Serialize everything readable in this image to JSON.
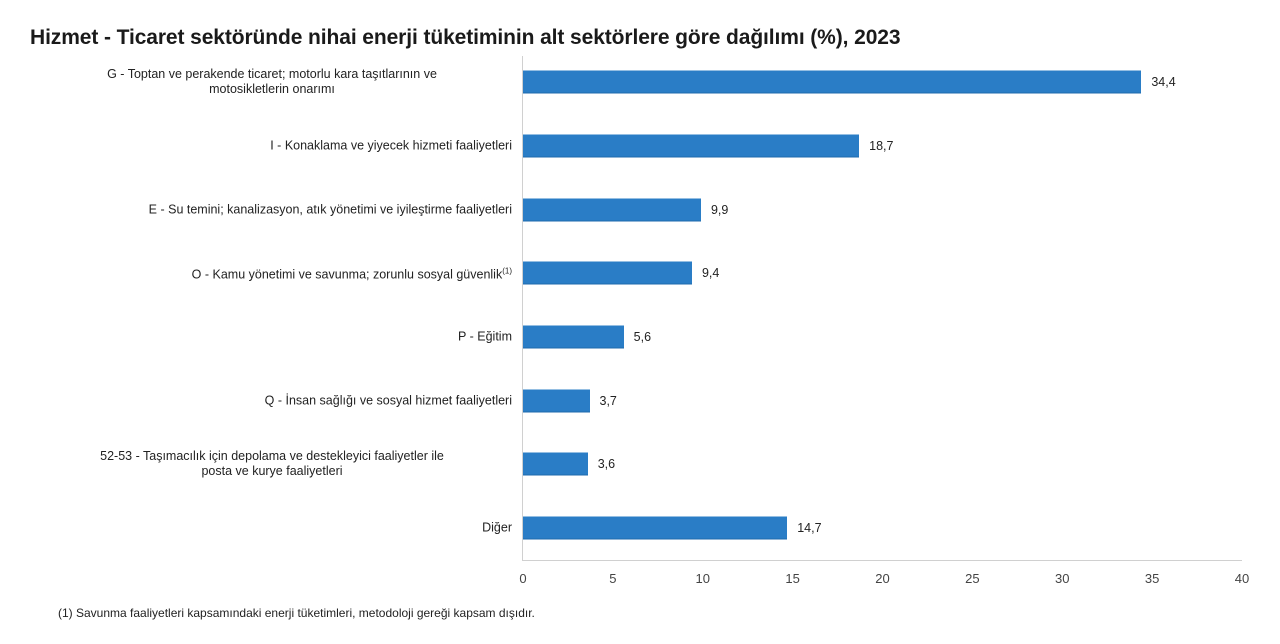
{
  "chart_data": {
    "type": "bar",
    "orientation": "horizontal",
    "title": "Hizmet - Ticaret sektöründe nihai enerji tüketiminin alt sektörlere göre dağılımı (%), 2023",
    "categories": [
      "G - Toptan ve perakende ticaret; motorlu kara taşıtlarının ve motosikletlerin onarımı",
      "I - Konaklama ve yiyecek hizmeti faaliyetleri",
      "E - Su temini; kanalizasyon, atık yönetimi ve iyileştirme faaliyetleri",
      "O - Kamu yönetimi ve savunma; zorunlu sosyal güvenlik(1)",
      "P - Eğitim",
      "Q - İnsan sağlığı ve sosyal hizmet faaliyetleri",
      "52-53 - Taşımacılık için depolama ve destekleyici faaliyetler ile posta ve kurye faaliyetleri",
      "Diğer"
    ],
    "values": [
      34.4,
      18.7,
      9.9,
      9.4,
      5.6,
      3.7,
      3.6,
      14.7
    ],
    "value_labels": [
      "34,4",
      "18,7",
      "9,9",
      "9,4",
      "5,6",
      "3,7",
      "3,6",
      "14,7"
    ],
    "xlabel": "",
    "ylabel": "",
    "xlim": [
      0,
      40
    ],
    "xticks": [
      0,
      5,
      10,
      15,
      20,
      25,
      30,
      35,
      40
    ],
    "grid": false,
    "legend": null,
    "bar_color": "#2a7dc6",
    "footnote": "(1) Savunma faaliyetleri kapsamındaki enerji tüketimleri, metodoloji gereği kapsam dışıdır."
  },
  "labels": {
    "row0": {
      "line1": "G - Toptan ve perakende ticaret; motorlu kara taşıtlarının ve",
      "line2": "motosikletlerin onarımı"
    },
    "row1": "I - Konaklama ve yiyecek hizmeti faaliyetleri",
    "row2": "E - Su temini; kanalizasyon, atık yönetimi ve iyileştirme faaliyetleri",
    "row3": {
      "text": "O - Kamu yönetimi ve savunma; zorunlu sosyal güvenlik",
      "sup": "(1)"
    },
    "row4": "P - Eğitim",
    "row5": "Q - İnsan sağlığı ve sosyal hizmet faaliyetleri",
    "row6": {
      "line1": "52-53 - Taşımacılık için depolama ve destekleyici faaliyetler ile",
      "line2": "posta ve kurye faaliyetleri"
    },
    "row7": "Diğer"
  },
  "ticks": [
    "0",
    "5",
    "10",
    "15",
    "20",
    "25",
    "30",
    "35",
    "40"
  ]
}
